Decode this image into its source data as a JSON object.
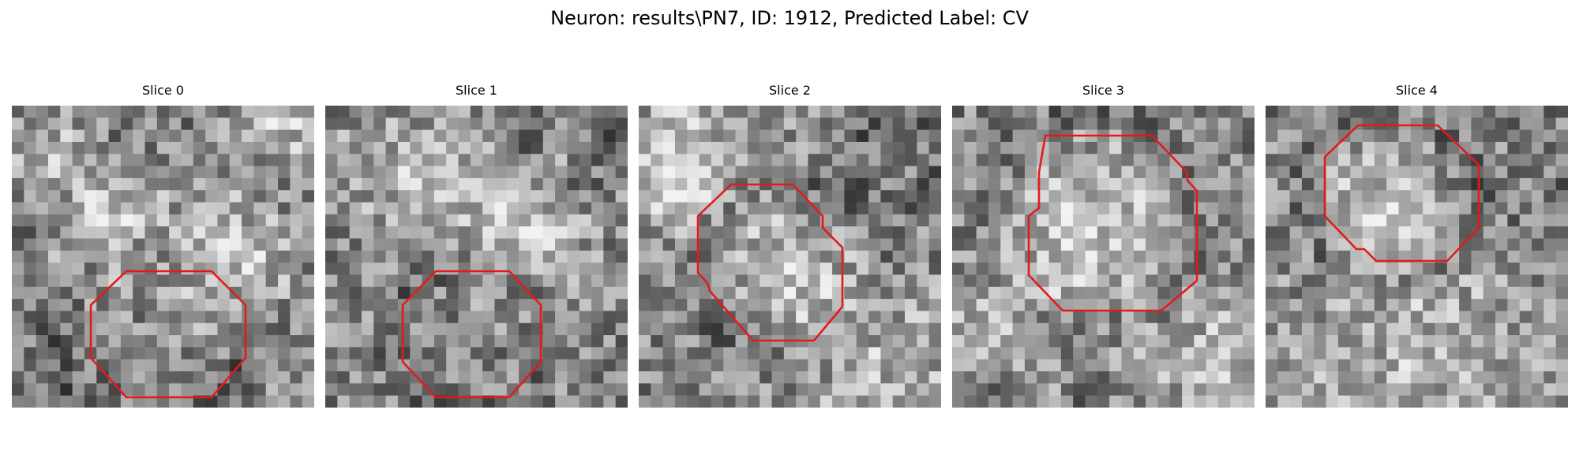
{
  "figure": {
    "title": "Neuron: results\\PN7, ID: 1912, Predicted Label: CV",
    "outline_color": "#e31a1c"
  },
  "slices": [
    {
      "title": "Slice 0"
    },
    {
      "title": "Slice 1"
    },
    {
      "title": "Slice 2"
    },
    {
      "title": "Slice 3"
    },
    {
      "title": "Slice 4"
    }
  ]
}
